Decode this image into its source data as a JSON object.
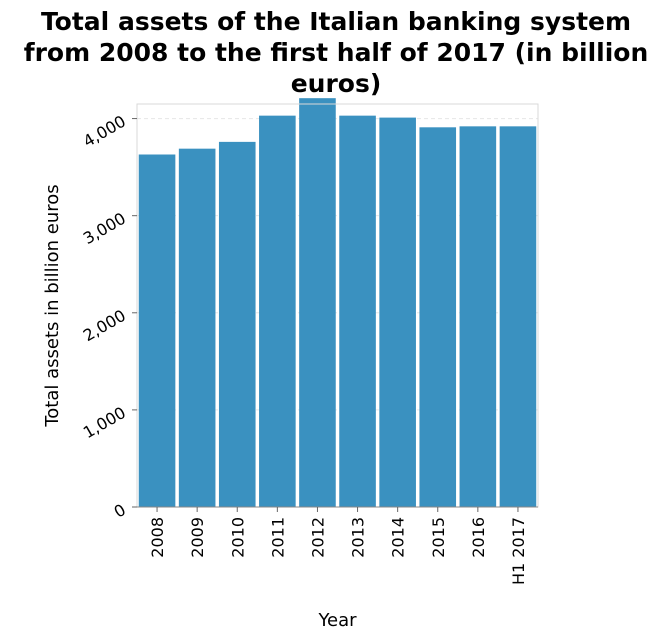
{
  "chart_data": {
    "type": "bar",
    "title": "Total assets of the Italian banking system\nfrom 2008 to the first half of 2017 (in billion\neuros)",
    "xlabel": "Year",
    "ylabel": "Total assets in billion euros",
    "categories": [
      "2008",
      "2009",
      "2010",
      "2011",
      "2012",
      "2013",
      "2014",
      "2015",
      "2016",
      "H1 2017"
    ],
    "values": [
      3630,
      3690,
      3760,
      4030,
      4210,
      4030,
      4010,
      3910,
      3920,
      3920
    ],
    "ylim": [
      0,
      4150
    ],
    "yticks": [
      0,
      1000,
      2000,
      3000,
      4000
    ],
    "ytick_labels": [
      "0",
      "1,000",
      "2,000",
      "3,000",
      "4,000"
    ],
    "grid": true,
    "bar_color": "#3a91c0",
    "grid_color": "#e6e6e6"
  }
}
